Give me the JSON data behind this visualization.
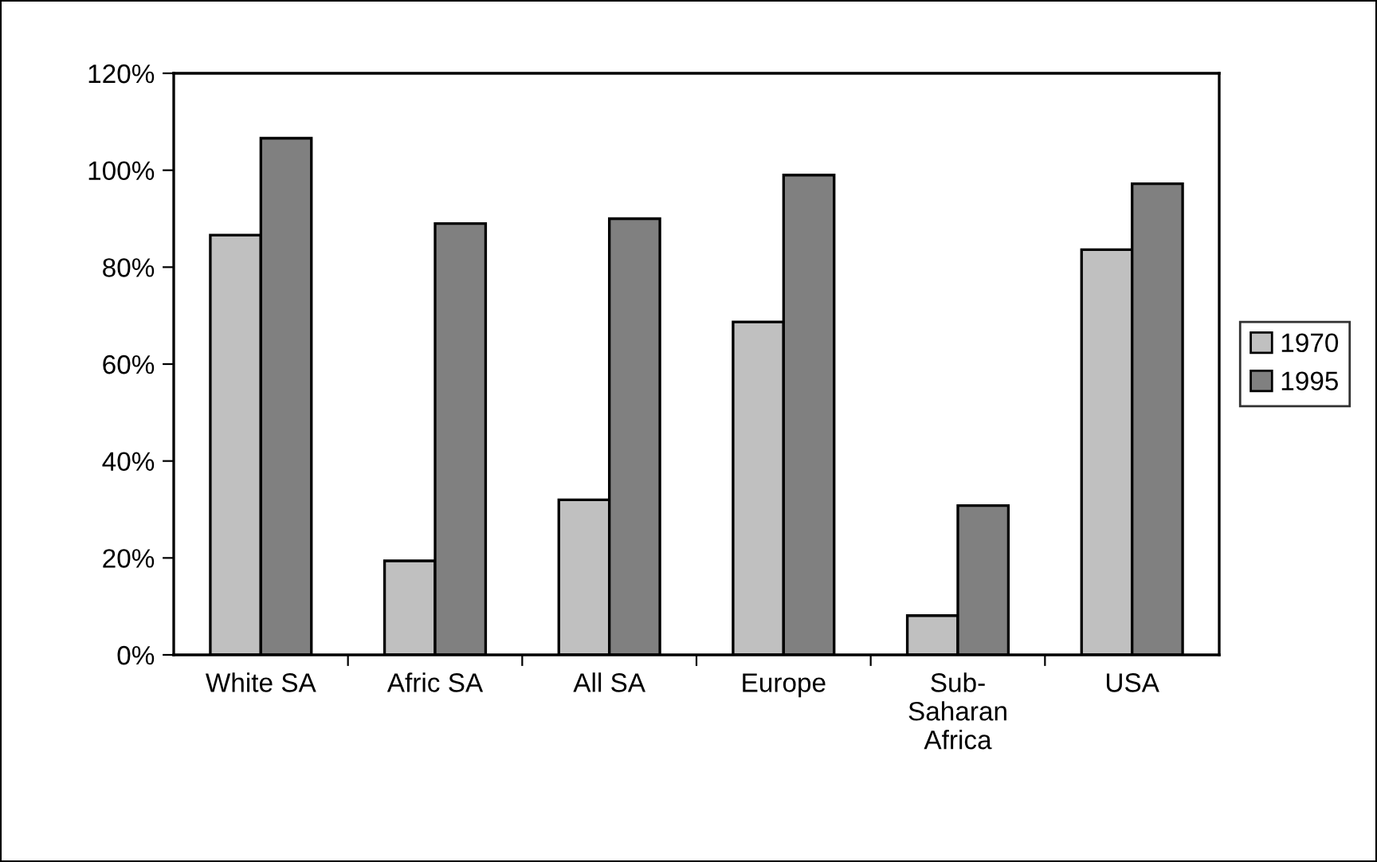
{
  "chart_data": {
    "type": "bar",
    "categories": [
      "White SA",
      "Afric SA",
      "All SA",
      "Europe",
      "Sub-\nSaharan\nAfrica",
      "USA"
    ],
    "series": [
      {
        "name": "1970",
        "color": "#c0c0c0",
        "values": [
          86.6,
          19.4,
          32,
          68.7,
          8.1,
          83.6
        ]
      },
      {
        "name": "1995",
        "color": "#808080",
        "values": [
          106.6,
          89,
          90,
          99,
          30.8,
          97.2
        ]
      }
    ],
    "ylim": [
      0,
      120
    ],
    "yticks": [
      {
        "value": 0,
        "label": "0%"
      },
      {
        "value": 20,
        "label": "20%"
      },
      {
        "value": 40,
        "label": "40%"
      },
      {
        "value": 60,
        "label": "60%"
      },
      {
        "value": 80,
        "label": "80%"
      },
      {
        "value": 100,
        "label": "100%"
      },
      {
        "value": 120,
        "label": "120%"
      }
    ],
    "grid": false,
    "legend": "right"
  }
}
